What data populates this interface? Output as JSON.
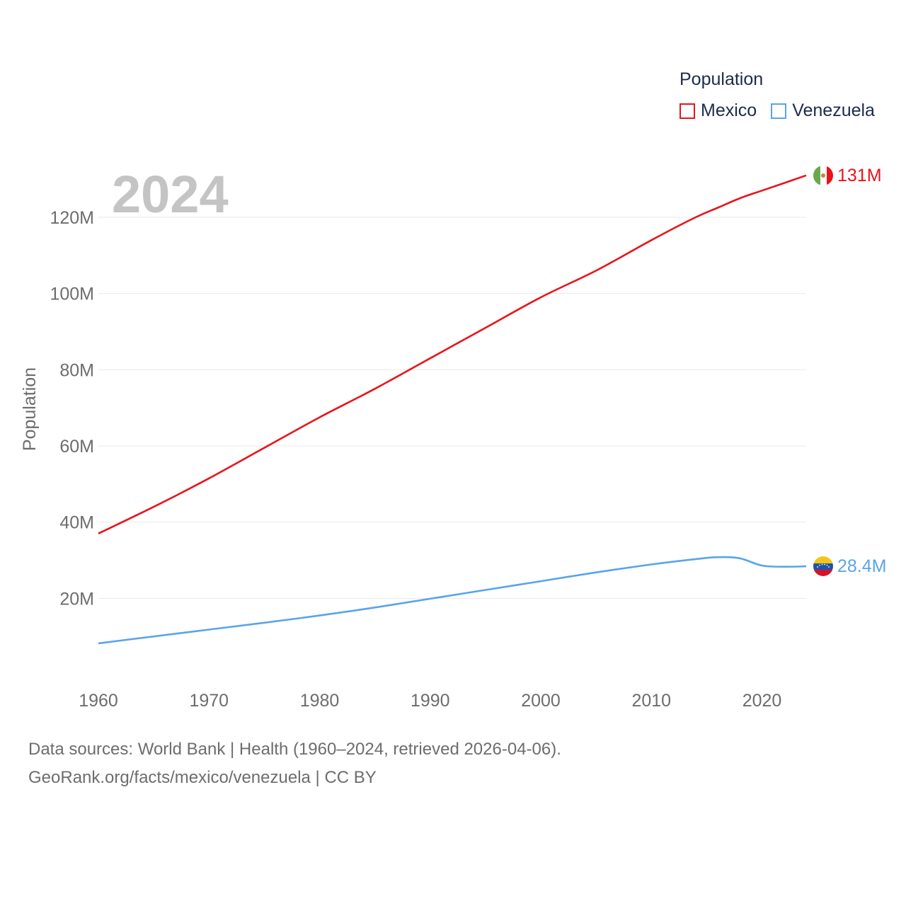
{
  "legend": {
    "title": "Population",
    "items": [
      {
        "label": "Mexico",
        "color": "#e8141b"
      },
      {
        "label": "Venezuela",
        "color": "#5aa4ea"
      }
    ]
  },
  "footer": {
    "line1": "Data sources: World Bank | Health (1960–2024, retrieved 2026-04-06).",
    "line2": "GeoRank.org/facts/mexico/venezuela | CC BY"
  },
  "chart_data": {
    "type": "line",
    "title": "Population",
    "year_watermark": "2024",
    "xlabel": "",
    "ylabel": "Population",
    "xlim": [
      1960,
      2024
    ],
    "ylim": [
      0,
      135000000
    ],
    "x_ticks": [
      1960,
      1970,
      1980,
      1990,
      2000,
      2010,
      2020
    ],
    "y_ticks": [
      {
        "value": 20000000,
        "label": "20M"
      },
      {
        "value": 40000000,
        "label": "40M"
      },
      {
        "value": 60000000,
        "label": "60M"
      },
      {
        "value": 80000000,
        "label": "80M"
      },
      {
        "value": 100000000,
        "label": "100M"
      },
      {
        "value": 120000000,
        "label": "120M"
      }
    ],
    "grid": true,
    "legend_position": "top-right",
    "x": [
      1960,
      1965,
      1970,
      1975,
      1980,
      1985,
      1990,
      1995,
      2000,
      2005,
      2010,
      2014,
      2016,
      2018,
      2020,
      2022,
      2024
    ],
    "series": [
      {
        "name": "Mexico",
        "color": "#e8141b",
        "end_label": "131M",
        "flag": "mexico-flag-icon",
        "values": [
          37000000,
          44000000,
          51500000,
          59500000,
          67500000,
          75000000,
          83000000,
          91000000,
          99000000,
          106000000,
          114000000,
          120000000,
          122500000,
          125000000,
          127000000,
          129000000,
          131000000
        ]
      },
      {
        "name": "Venezuela",
        "color": "#5aa4ea",
        "end_label": "28.4M",
        "flag": "venezuela-flag-icon",
        "values": [
          8200000,
          10000000,
          11800000,
          13600000,
          15500000,
          17600000,
          19900000,
          22200000,
          24500000,
          26800000,
          28900000,
          30300000,
          30800000,
          30500000,
          28600000,
          28300000,
          28400000
        ]
      }
    ]
  }
}
